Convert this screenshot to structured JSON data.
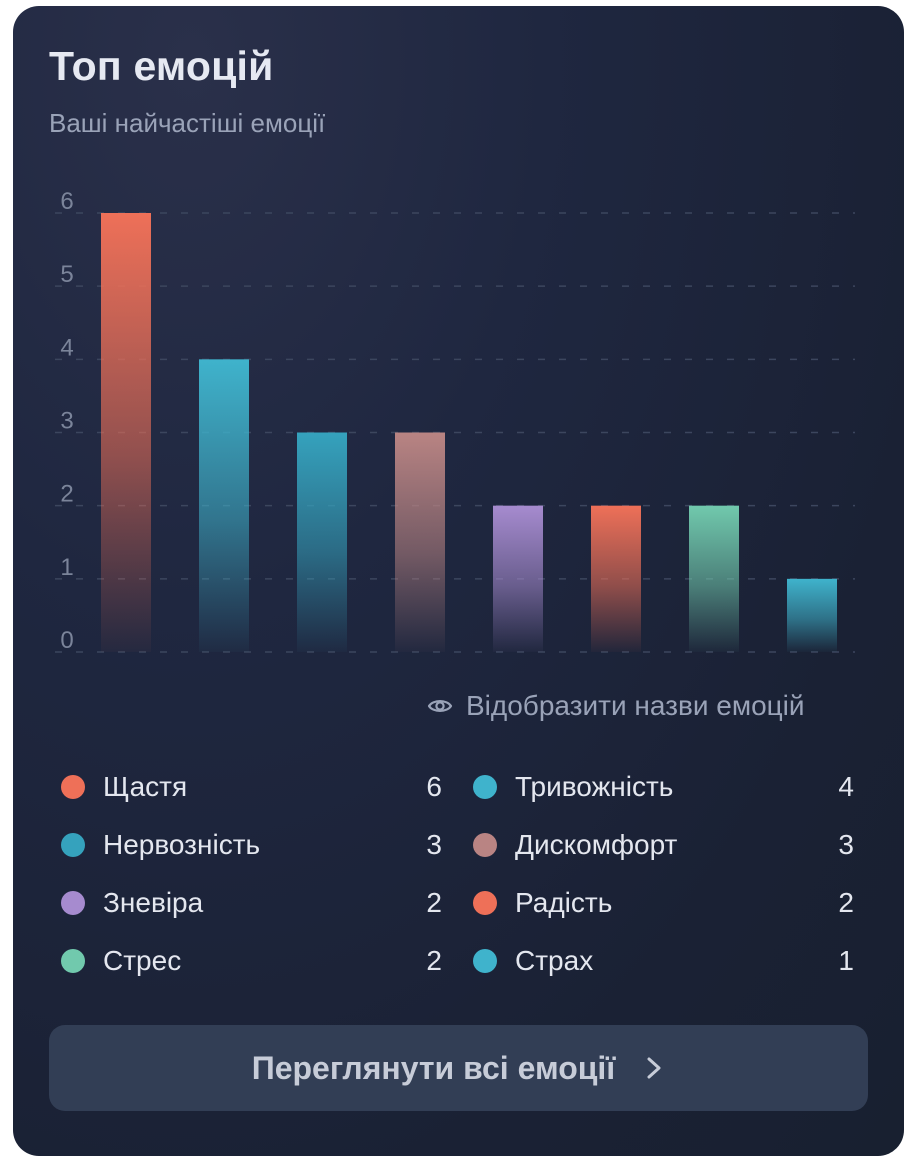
{
  "header": {
    "title": "Топ емоцій",
    "subtitle": "Ваші найчастіші емоції"
  },
  "toggle": {
    "label": "Відобразити назви емоцій",
    "icon": "eye-icon"
  },
  "button": {
    "label": "Переглянути всі емоції",
    "icon": "chevron-right-icon"
  },
  "chart_data": {
    "type": "bar",
    "title": "Топ емоцій",
    "subtitle": "Ваші найчастіші емоції",
    "categories": [
      "Щастя",
      "Тривожність",
      "Нервозність",
      "Дискомфорт",
      "Зневіра",
      "Радість",
      "Стрес",
      "Страх"
    ],
    "values": [
      6,
      4,
      3,
      3,
      2,
      2,
      2,
      1
    ],
    "colors": [
      "#ee7058",
      "#3fb3cc",
      "#35a2bd",
      "#b98483",
      "#a68bcf",
      "#ee7058",
      "#71c9ad",
      "#3fb3cc"
    ],
    "ylim": [
      0,
      6
    ],
    "yticks": [
      0,
      1,
      2,
      3,
      4,
      5,
      6
    ],
    "show_category_labels": false,
    "grid": true,
    "legend_position": "bottom"
  },
  "legend": {
    "items": [
      {
        "name": "Щастя",
        "count": "6",
        "color": "#ee7058"
      },
      {
        "name": "Тривожність",
        "count": "4",
        "color": "#3fb3cc"
      },
      {
        "name": "Нервозність",
        "count": "3",
        "color": "#35a2bd"
      },
      {
        "name": "Дискомфорт",
        "count": "3",
        "color": "#b98483"
      },
      {
        "name": "Зневіра",
        "count": "2",
        "color": "#a68bcf"
      },
      {
        "name": "Радість",
        "count": "2",
        "color": "#ee7058"
      },
      {
        "name": "Стрес",
        "count": "2",
        "color": "#71c9ad"
      },
      {
        "name": "Страх",
        "count": "1",
        "color": "#3fb3cc"
      }
    ]
  }
}
